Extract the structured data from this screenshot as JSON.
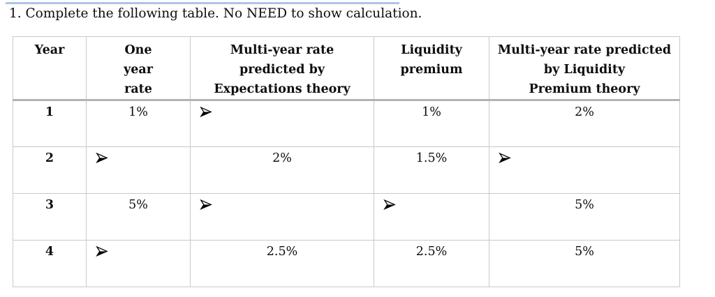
{
  "heading": "1. Complete the following table. No NEED to show calculation.",
  "accent_colors": {
    "top_rule_blue": "#a9c6e8",
    "table_border_gray": "#c9c9c9",
    "header_divider_gray": "#b3b3b3"
  },
  "icons": {
    "arrow_bullet": "right-arrowhead-icon"
  },
  "table": {
    "columns": [
      "Year",
      "One\nyear\nrate",
      "Multi-year rate\npredicted by\nExpectations theory",
      "Liquidity\npremium",
      "Multi-year rate predicted\nby Liquidity\nPremium theory"
    ],
    "rows": [
      {
        "year": "1",
        "cells": [
          {
            "v": "1%"
          },
          {
            "arrow": true
          },
          {
            "v": "1%"
          },
          {
            "v": "2%"
          }
        ]
      },
      {
        "year": "2",
        "cells": [
          {
            "arrow": true
          },
          {
            "v": "2%"
          },
          {
            "v": "1.5%"
          },
          {
            "arrow": true
          }
        ]
      },
      {
        "year": "3",
        "cells": [
          {
            "v": "5%"
          },
          {
            "arrow": true
          },
          {
            "arrow": true
          },
          {
            "v": "5%"
          }
        ]
      },
      {
        "year": "4",
        "cells": [
          {
            "arrow": true
          },
          {
            "v": "2.5%"
          },
          {
            "v": "2.5%"
          },
          {
            "v": "5%"
          }
        ]
      }
    ],
    "column_keys": [
      "year",
      "one-year-rate",
      "expectations-theory-rate",
      "liquidity-premium",
      "liquidity-premium-theory-rate"
    ]
  }
}
